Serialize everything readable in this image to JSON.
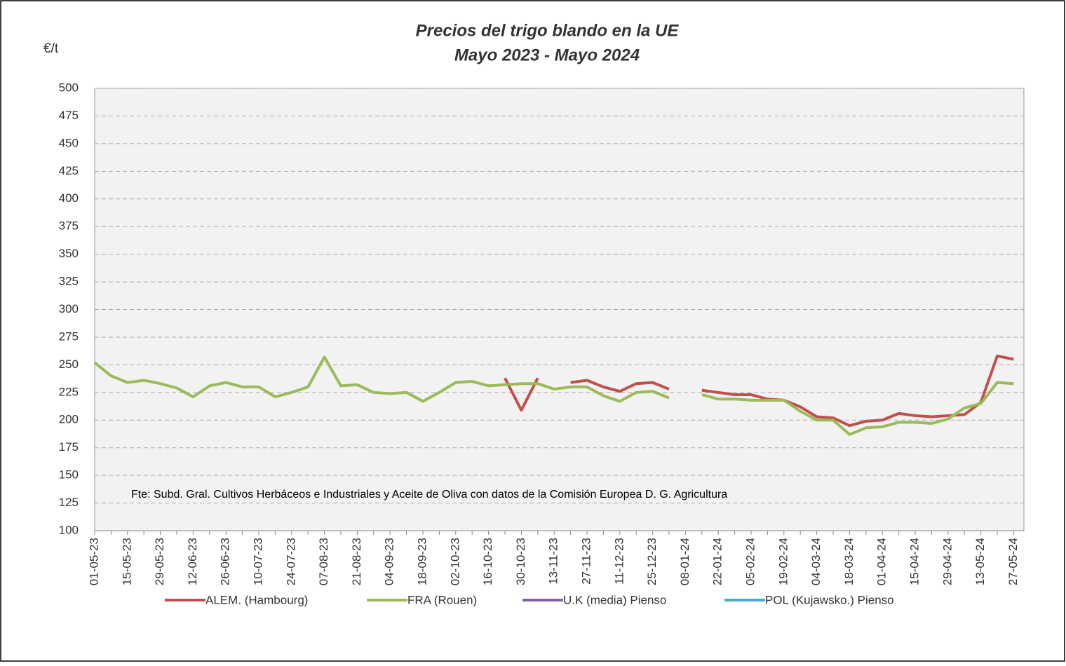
{
  "chart_data": {
    "type": "line",
    "title": "Precios del trigo blando en la UE",
    "subtitle": "Mayo 2023 - Mayo 2024",
    "y_label": "€/t",
    "annotation": "Fte: Subd. Gral. Cultivos Herbáceos e Industriales y Aceite de Oliva con  datos de la Comisión Europea D. G. Agricultura",
    "categories": [
      "01-05-23",
      null,
      "15-05-23",
      null,
      "29-05-23",
      null,
      "12-06-23",
      null,
      "26-06-23",
      null,
      "10-07-23",
      null,
      "24-07-23",
      null,
      "07-08-23",
      null,
      "21-08-23",
      null,
      "04-09-23",
      null,
      "18-09-23",
      null,
      "02-10-23",
      null,
      "16-10-23",
      null,
      "30-10-23",
      null,
      "13-11-23",
      null,
      "27-11-23",
      null,
      "11-12-23",
      null,
      "25-12-23",
      null,
      "08-01-24",
      null,
      "22-01-24",
      null,
      "05-02-24",
      null,
      "19-02-24",
      null,
      "04-03-24",
      null,
      "18-03-24",
      null,
      "01-04-24",
      null,
      "15-04-24",
      null,
      "29-04-24",
      null,
      "13-05-24",
      null,
      "27-05-24"
    ],
    "series": [
      {
        "name": "ALEM. (Hambourg)",
        "color": "#c0504d",
        "values": [
          null,
          null,
          null,
          null,
          null,
          null,
          null,
          null,
          null,
          null,
          null,
          null,
          null,
          null,
          null,
          null,
          null,
          null,
          null,
          null,
          null,
          null,
          null,
          null,
          null,
          238,
          209,
          238,
          null,
          234,
          236,
          230,
          226,
          233,
          234,
          228,
          null,
          227,
          225,
          223,
          223,
          219,
          218,
          212,
          203,
          202,
          195,
          199,
          200,
          206,
          204,
          203,
          204,
          205,
          216,
          258,
          255
        ]
      },
      {
        "name": "FRA (Rouen)",
        "color": "#9bbb59",
        "values": [
          252,
          240,
          234,
          236,
          233,
          229,
          221,
          231,
          234,
          230,
          230,
          221,
          225,
          230,
          257,
          231,
          232,
          225,
          224,
          225,
          217,
          225,
          234,
          235,
          231,
          232,
          233,
          233,
          228,
          230,
          230,
          222,
          217,
          225,
          226,
          220,
          null,
          223,
          219,
          219,
          218,
          218,
          218,
          208,
          200,
          200,
          187,
          193,
          194,
          198,
          198,
          197,
          201,
          211,
          215,
          234,
          233
        ]
      },
      {
        "name": "U.K (media) Pienso",
        "color": "#8064a2",
        "values": [
          null,
          null,
          null,
          null,
          null,
          null,
          null,
          null,
          null,
          null,
          null,
          null,
          null,
          null,
          null,
          null,
          null,
          null,
          null,
          null,
          null,
          null,
          null,
          null,
          null,
          null,
          null,
          null,
          null,
          null,
          null,
          null,
          null,
          null,
          null,
          null,
          null,
          null,
          null,
          null,
          null,
          null,
          null,
          null,
          null,
          null,
          null,
          null,
          null,
          null,
          null,
          null,
          null,
          null,
          null,
          null,
          null
        ]
      },
      {
        "name": "POL (Kujawsko.) Pienso",
        "color": "#4bacc6",
        "values": [
          null,
          null,
          null,
          null,
          null,
          null,
          null,
          null,
          null,
          null,
          null,
          null,
          null,
          null,
          null,
          null,
          null,
          null,
          null,
          null,
          null,
          null,
          null,
          null,
          null,
          null,
          null,
          null,
          null,
          null,
          null,
          null,
          null,
          null,
          null,
          null,
          null,
          null,
          null,
          null,
          null,
          null,
          null,
          null,
          null,
          null,
          null,
          null,
          null,
          null,
          null,
          null,
          null,
          null,
          null,
          null,
          null
        ]
      }
    ],
    "ylim": [
      100,
      500
    ],
    "yticks": [
      100,
      125,
      150,
      175,
      200,
      225,
      250,
      275,
      300,
      325,
      350,
      375,
      400,
      425,
      450,
      475,
      500
    ],
    "grid": true
  }
}
